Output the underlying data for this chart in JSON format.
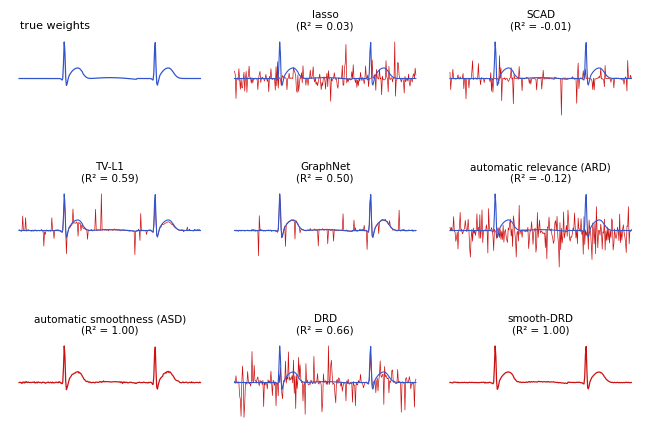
{
  "titles": [
    [
      "true weights",
      "lasso\n(R² = 0.03)",
      "SCAD\n(R² = -0.01)"
    ],
    [
      "TV-L1\n(R² = 0.59)",
      "GraphNet\n(R² = 0.50)",
      "automatic relevance (ARD)\n(R² = -0.12)"
    ],
    [
      "automatic smoothness (ASD)\n(R² = 1.00)",
      "DRD\n(R² = 0.66)",
      "smooth-DRD\n(R² = 1.00)"
    ]
  ],
  "true_color": "#3355cc",
  "pred_color": "#cc1111",
  "background_color": "#ffffff",
  "n_points": 250,
  "seed": 42
}
